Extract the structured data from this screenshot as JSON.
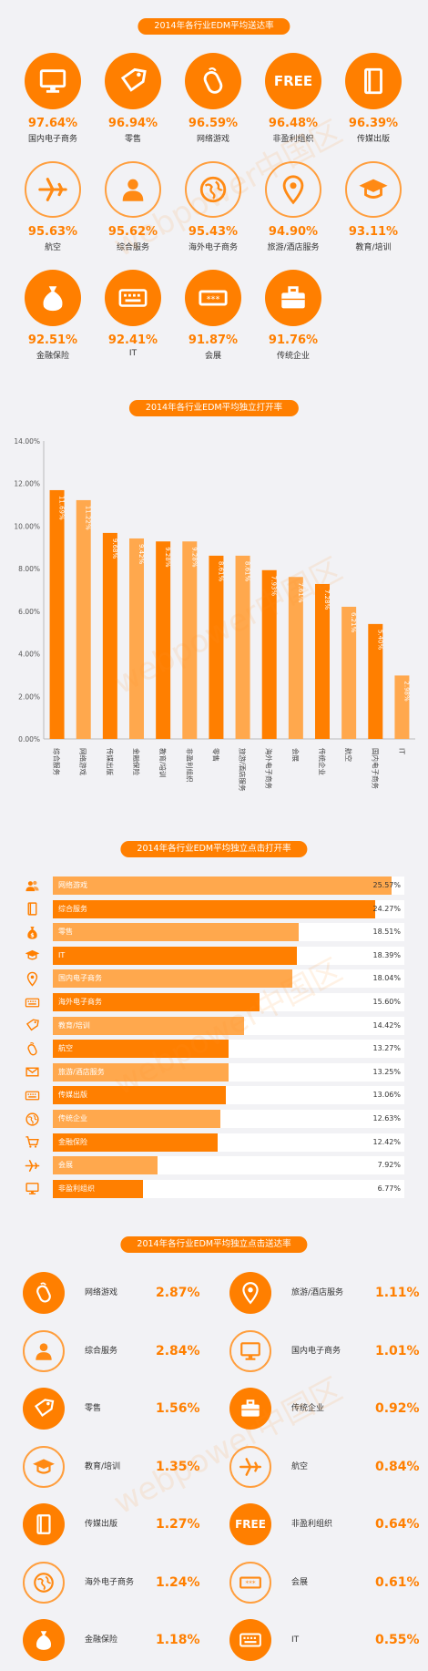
{
  "section1": {
    "title": "2014年各行业EDM平均送达率",
    "items": [
      {
        "label": "国内电子商务",
        "value": "97.64%",
        "icon": "monitor-icon",
        "style": "fill"
      },
      {
        "label": "零售",
        "value": "96.94%",
        "icon": "tag-icon",
        "style": "fill"
      },
      {
        "label": "网络游戏",
        "value": "96.59%",
        "icon": "mouse-icon",
        "style": "fill"
      },
      {
        "label": "非盈利组织",
        "value": "96.48%",
        "icon": "free-icon",
        "icon_text": "FREE",
        "style": "fill"
      },
      {
        "label": "传媒出版",
        "value": "96.39%",
        "icon": "book-icon",
        "style": "fill"
      },
      {
        "label": "航空",
        "value": "95.63%",
        "icon": "airplane-icon",
        "style": "outline"
      },
      {
        "label": "综合服务",
        "value": "95.62%",
        "icon": "person-icon",
        "style": "outline"
      },
      {
        "label": "海外电子商务",
        "value": "95.43%",
        "icon": "globe-icon",
        "style": "outline"
      },
      {
        "label": "旅游/酒店服务",
        "value": "94.90%",
        "icon": "location-pin-icon",
        "style": "outline"
      },
      {
        "label": "教育/培训",
        "value": "93.11%",
        "icon": "graduation-cap-icon",
        "style": "outline"
      },
      {
        "label": "金融保险",
        "value": "92.51%",
        "icon": "money-bag-icon",
        "style": "fill"
      },
      {
        "label": "IT",
        "value": "92.41%",
        "icon": "keyboard-icon",
        "style": "fill"
      },
      {
        "label": "会展",
        "value": "91.87%",
        "icon": "ticket-icon",
        "style": "fill"
      },
      {
        "label": "传统企业",
        "value": "91.76%",
        "icon": "briefcase-icon",
        "style": "fill"
      }
    ]
  },
  "chart_data": [
    {
      "type": "bar",
      "title": "2014年各行业EDM平均独立打开率",
      "categories": [
        "综合服务",
        "网络游戏",
        "传媒出版",
        "金融保险",
        "教育/培训",
        "非盈利组织",
        "零售",
        "旅游/酒店服务",
        "海外电子商务",
        "会展",
        "传统企业",
        "航空",
        "国内电子商务",
        "IT"
      ],
      "values": [
        11.69,
        11.22,
        9.68,
        9.42,
        9.28,
        9.28,
        8.61,
        8.61,
        7.93,
        7.61,
        7.28,
        6.21,
        5.4,
        2.98
      ],
      "value_labels": [
        "11.69%",
        "11.22%",
        "9.68%",
        "9.42%",
        "9.28%",
        "9.28%",
        "8.61%",
        "8.61%",
        "7.93%",
        "7.61%",
        "7.28%",
        "6.21%",
        "5.40%",
        "2.98%"
      ],
      "ylim": [
        0,
        14
      ],
      "yticks": [
        "0.00%",
        "2.00%",
        "4.00%",
        "6.00%",
        "8.00%",
        "10.00%",
        "12.00%",
        "14.00%"
      ],
      "colors": [
        "#ff7f00",
        "#ffa84d"
      ]
    },
    {
      "type": "bar",
      "title": "2014年各行业EDM平均独立点击打开率",
      "categories": [
        "网络游戏",
        "综合服务",
        "零售",
        "IT",
        "国内电子商务",
        "海外电子商务",
        "教育/培训",
        "航空",
        "旅游/酒店服务",
        "传媒出版",
        "传统企业",
        "金融保险",
        "会展",
        "非盈利组织"
      ],
      "values": [
        25.57,
        24.27,
        18.51,
        18.39,
        18.04,
        15.6,
        14.42,
        13.27,
        13.25,
        13.06,
        12.63,
        12.42,
        7.92,
        6.77
      ],
      "value_labels": [
        "25.57%",
        "24.27%",
        "18.51%",
        "18.39%",
        "18.04%",
        "15.60%",
        "14.42%",
        "13.27%",
        "13.25%",
        "13.06%",
        "12.63%",
        "12.42%",
        "7.92%",
        "6.77%"
      ],
      "icons": [
        "users-icon",
        "book-icon",
        "money-bag-icon",
        "graduation-cap-icon",
        "location-pin-icon",
        "keyboard-icon",
        "tag-icon",
        "mouse-icon",
        "mail-icon",
        "keyboard-icon",
        "globe-icon",
        "cart-icon",
        "airplane-icon",
        "monitor-icon"
      ],
      "colors": [
        "#ffa84d",
        "#ff7f00"
      ]
    }
  ],
  "section4": {
    "title": "2014年各行业EDM平均独立点击送达率",
    "items": [
      {
        "label": "网络游戏",
        "value": "2.87%",
        "icon": "mouse-icon",
        "style": "fill"
      },
      {
        "label": "旅游/酒店服务",
        "value": "1.11%",
        "icon": "location-pin-icon",
        "style": "fill"
      },
      {
        "label": "综合服务",
        "value": "2.84%",
        "icon": "person-icon",
        "style": "outline"
      },
      {
        "label": "国内电子商务",
        "value": "1.01%",
        "icon": "monitor-icon",
        "style": "outline"
      },
      {
        "label": "零售",
        "value": "1.56%",
        "icon": "tag-icon",
        "style": "fill"
      },
      {
        "label": "传统企业",
        "value": "0.92%",
        "icon": "briefcase-icon",
        "style": "fill"
      },
      {
        "label": "教育/培训",
        "value": "1.35%",
        "icon": "graduation-cap-icon",
        "style": "outline"
      },
      {
        "label": "航空",
        "value": "0.84%",
        "icon": "airplane-icon",
        "style": "outline"
      },
      {
        "label": "传媒出版",
        "value": "1.27%",
        "icon": "book-icon",
        "style": "fill"
      },
      {
        "label": "非盈利组织",
        "value": "0.64%",
        "icon": "free-icon",
        "icon_text": "FREE",
        "style": "fill"
      },
      {
        "label": "海外电子商务",
        "value": "1.24%",
        "icon": "globe-icon",
        "style": "outline"
      },
      {
        "label": "会展",
        "value": "0.61%",
        "icon": "ticket-icon",
        "style": "outline"
      },
      {
        "label": "金融保险",
        "value": "1.18%",
        "icon": "money-bag-icon",
        "style": "fill"
      },
      {
        "label": "IT",
        "value": "0.55%",
        "icon": "keyboard-icon",
        "style": "fill"
      }
    ]
  },
  "watermark": "webpower中国区",
  "colors": {
    "accent": "#ff7f00",
    "accent_light": "#ffa84d"
  }
}
